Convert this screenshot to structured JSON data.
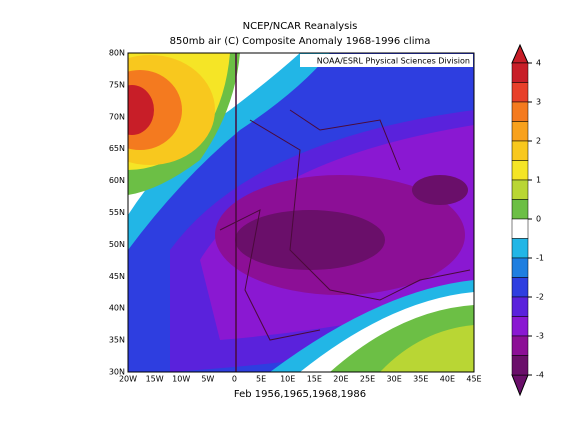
{
  "title": "NCEP/NCAR Reanalysis",
  "subtitle": "850mb air (C) Composite Anomaly 1968-1996 clima",
  "credit": "NOAA/ESRL Physical Sciences Division",
  "caption": "Feb 1956,1965,1968,1986",
  "lat_labels": [
    "80N",
    "75N",
    "70N",
    "65N",
    "60N",
    "55N",
    "50N",
    "45N",
    "40N",
    "35N",
    "30N"
  ],
  "lon_labels": [
    "20W",
    "15W",
    "10W",
    "5W",
    "0",
    "5E",
    "10E",
    "15E",
    "20E",
    "25E",
    "30E",
    "35E",
    "40E",
    "45E"
  ],
  "colorbar": {
    "ticks": [
      4,
      3,
      2,
      1,
      0,
      -1,
      -2,
      -3,
      -4
    ],
    "colors": [
      "#c81e28",
      "#e8402a",
      "#f47a1f",
      "#f8a11c",
      "#f8c81e",
      "#f5e526",
      "#b9d634",
      "#6cbf45",
      "#ffffff",
      "#22b6e6",
      "#1e7ee0",
      "#2e3ee0",
      "#5a22dc",
      "#8a18d2",
      "#8c0f96",
      "#6a0f6a"
    ]
  }
}
